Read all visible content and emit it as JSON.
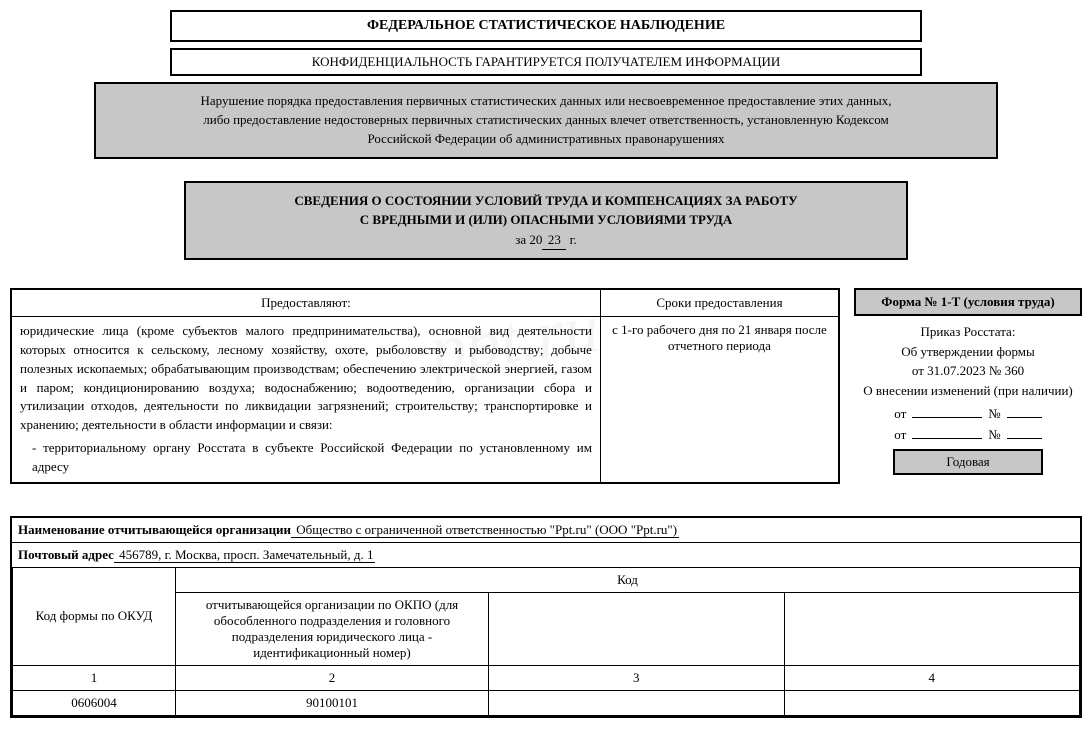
{
  "header": {
    "title": "ФЕДЕРАЛЬНОЕ СТАТИСТИЧЕСКОЕ НАБЛЮДЕНИЕ",
    "confidentiality": "КОНФИДЕНЦИАЛЬНОСТЬ ГАРАНТИРУЕТСЯ ПОЛУЧАТЕЛЕМ ИНФОРМАЦИИ",
    "warning_l1": "Нарушение порядка предоставления первичных статистических данных или несвоевременное предоставление этих данных,",
    "warning_l2": "либо предоставление недостоверных первичных статистических данных влечет ответственность, установленную Кодексом",
    "warning_l3": "Российской Федерации об административных правонарушениях"
  },
  "info": {
    "line1": "СВЕДЕНИЯ О СОСТОЯНИИ УСЛОВИЙ ТРУДА И КОМПЕНСАЦИЯХ ЗА РАБОТУ",
    "line2": "С ВРЕДНЫМИ И (ИЛИ) ОПАСНЫМИ УСЛОВИЯМИ ТРУДА",
    "year_prefix": "за 20",
    "year_value": "23",
    "year_suffix": " г."
  },
  "provide": {
    "head_left": "Предоставляют:",
    "head_right": "Сроки предоставления",
    "body": "юридические лица (кроме субъектов малого предпринимательства), основной вид деятельности которых относится к сельскому, лесному хозяйству, охоте, рыболовству и рыбоводству; добыче полезных ископаемых; обрабатывающим производствам; обеспечению электрической энергией, газом и паром; кондиционированию воздуха; водоснабжению; водоотведению, организации сбора и утилизации отходов, деятельности по ликвидации загрязнений; строительству; транспортировке и хранению; деятельности в области информации и связи:",
    "indent": "- территориальному органу Росстата в субъекте Российской Федерации по установленному им адресу",
    "deadline": "с 1-го рабочего дня по 21 января после отчетного периода"
  },
  "right": {
    "form_title": "Форма № 1-Т (условия труда)",
    "order_l1": "Приказ Росстата:",
    "order_l2": "Об утверждении формы",
    "order_l3": "от 31.07.2023 № 360",
    "order_l4": "О внесении изменений (при наличии)",
    "ot": "от",
    "num": "№",
    "annual": "Годовая"
  },
  "org": {
    "name_label": "Наименование отчитывающейся организации",
    "name_value": " Общество с ограниченной ответственностью \"Ppt.ru\" (ООО \"Ppt.ru\")",
    "addr_label": "Почтовый адрес",
    "addr_value": " 456789, г. Москва, просп. Замечательный, д. 1"
  },
  "codes": {
    "okud_header": "Код формы по ОКУД",
    "kod_header": "Код",
    "okpo_header": "отчитывающейся организации по ОКПО (для обособленного подразделения и головного подразделения юридического лица - идентификационный номер)",
    "col1": "1",
    "col2": "2",
    "col3": "3",
    "col4": "4",
    "okud_value": "0606004",
    "okpo_value": "90100101",
    "c3_value": "",
    "c4_value": ""
  },
  "watermark": "ppt.ru"
}
